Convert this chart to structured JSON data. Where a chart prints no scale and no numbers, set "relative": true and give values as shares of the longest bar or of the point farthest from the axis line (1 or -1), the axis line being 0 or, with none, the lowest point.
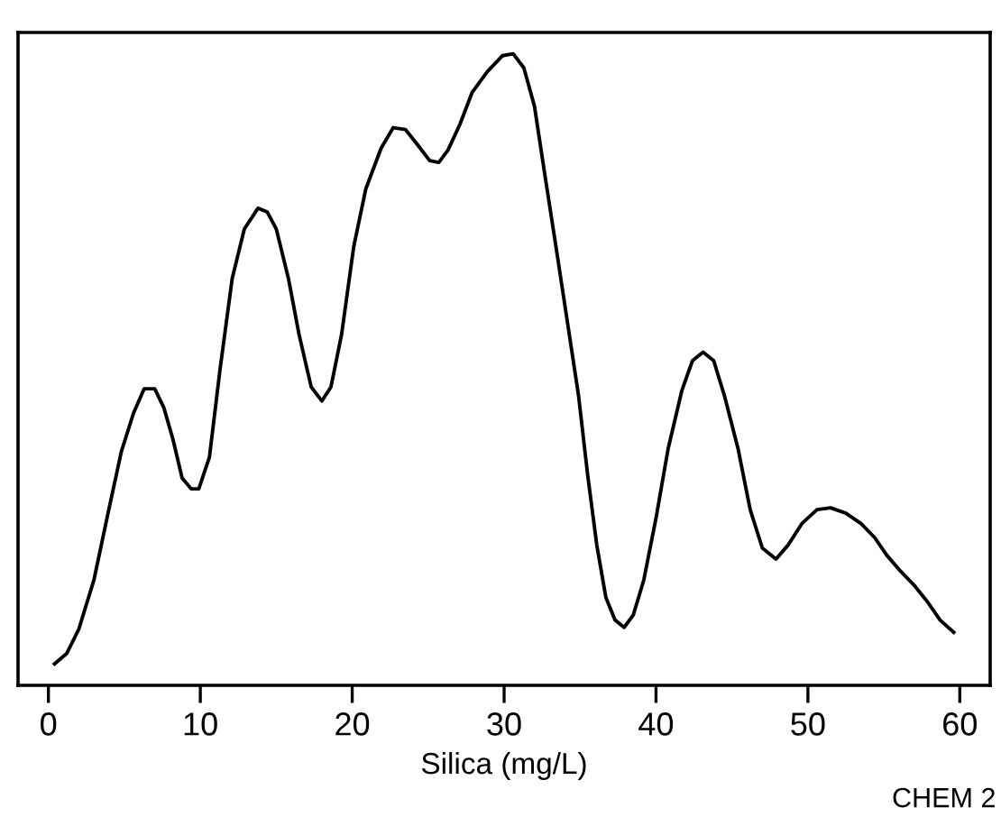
{
  "chart_data": {
    "type": "line",
    "relative": true,
    "xlabel": "Silica (mg/L)",
    "annotations": [
      "CHEM 2"
    ],
    "xlim": [
      -2,
      62
    ],
    "xticks": [
      0,
      10,
      20,
      30,
      40,
      50,
      60
    ],
    "tick_labels": "x",
    "grid": false,
    "legend": false,
    "series": [
      {
        "color": "#000000",
        "x": [
          0.4,
          1.2,
          2.0,
          3.0,
          3.9,
          4.8,
          5.6,
          6.3,
          7.0,
          7.6,
          8.2,
          8.8,
          9.4,
          9.9,
          10.6,
          11.3,
          12.1,
          12.9,
          13.8,
          14.4,
          15.0,
          15.8,
          16.5,
          17.3,
          18.0,
          18.6,
          19.3,
          20.1,
          20.9,
          21.9,
          22.7,
          23.5,
          24.3,
          25.1,
          25.7,
          26.3,
          27.1,
          27.9,
          28.9,
          29.9,
          30.6,
          31.3,
          32.0,
          32.7,
          33.5,
          34.2,
          34.9,
          35.5,
          36.1,
          36.7,
          37.3,
          37.9,
          38.5,
          39.2,
          40.0,
          40.8,
          41.7,
          42.4,
          43.1,
          43.8,
          44.5,
          45.4,
          46.2,
          47.0,
          47.9,
          48.7,
          49.6,
          50.6,
          51.5,
          52.5,
          53.5,
          54.4,
          55.2,
          56.1,
          57.0,
          57.9,
          58.7,
          59.6
        ],
        "values": [
          0,
          0.017,
          0.057,
          0.138,
          0.244,
          0.348,
          0.411,
          0.451,
          0.451,
          0.42,
          0.368,
          0.305,
          0.287,
          0.287,
          0.339,
          0.483,
          0.632,
          0.713,
          0.747,
          0.741,
          0.713,
          0.632,
          0.54,
          0.454,
          0.431,
          0.454,
          0.54,
          0.684,
          0.779,
          0.845,
          0.879,
          0.876,
          0.851,
          0.825,
          0.822,
          0.842,
          0.885,
          0.937,
          0.971,
          0.997,
          1.0,
          0.977,
          0.914,
          0.799,
          0.67,
          0.555,
          0.44,
          0.31,
          0.195,
          0.109,
          0.072,
          0.06,
          0.08,
          0.138,
          0.239,
          0.353,
          0.448,
          0.497,
          0.511,
          0.497,
          0.44,
          0.353,
          0.253,
          0.19,
          0.172,
          0.195,
          0.23,
          0.253,
          0.256,
          0.247,
          0.23,
          0.207,
          0.178,
          0.152,
          0.129,
          0.101,
          0.072,
          0.052
        ]
      }
    ]
  }
}
